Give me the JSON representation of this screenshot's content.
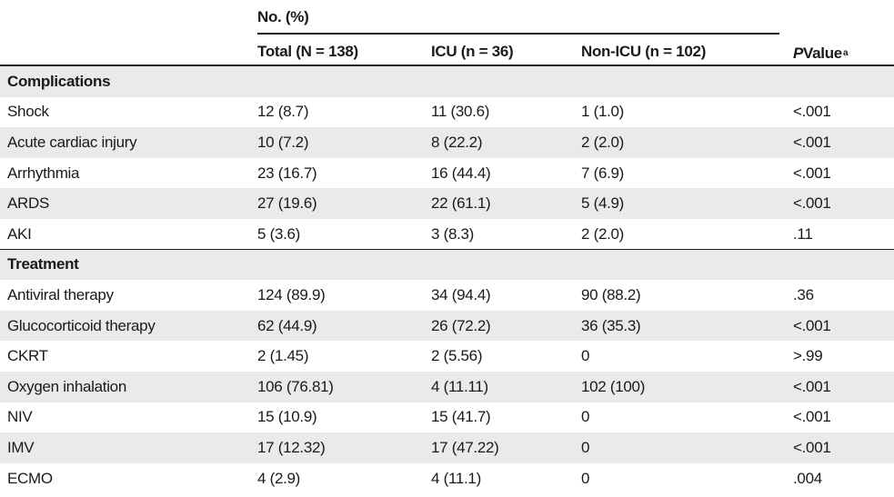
{
  "header": {
    "group_label": "No. (%)",
    "col_total": "Total (N = 138)",
    "col_icu": "ICU (n = 36)",
    "col_nonicu": "Non-ICU (n = 102)",
    "col_p_italic": "P",
    "col_p_rest": " Value",
    "col_p_sup": "a"
  },
  "sections": [
    {
      "title": "Complications",
      "rows": [
        {
          "label": "Shock",
          "total": "12 (8.7)",
          "icu": "11 (30.6)",
          "nonicu": "1 (1.0)",
          "p": "<.001"
        },
        {
          "label": "Acute cardiac injury",
          "total": "10 (7.2)",
          "icu": "8 (22.2)",
          "nonicu": "2 (2.0)",
          "p": "<.001"
        },
        {
          "label": "Arrhythmia",
          "total": "23 (16.7)",
          "icu": "16 (44.4)",
          "nonicu": "7 (6.9)",
          "p": "<.001"
        },
        {
          "label": "ARDS",
          "total": "27 (19.6)",
          "icu": "22 (61.1)",
          "nonicu": "5 (4.9)",
          "p": "<.001"
        },
        {
          "label": "AKI",
          "total": "5 (3.6)",
          "icu": "3 (8.3)",
          "nonicu": "2 (2.0)",
          "p": ".11"
        }
      ]
    },
    {
      "title": "Treatment",
      "rows": [
        {
          "label": "Antiviral therapy",
          "total": "124 (89.9)",
          "icu": "34 (94.4)",
          "nonicu": "90 (88.2)",
          "p": ".36"
        },
        {
          "label": "Glucocorticoid therapy",
          "total": "62 (44.9)",
          "icu": "26 (72.2)",
          "nonicu": "36 (35.3)",
          "p": "<.001"
        },
        {
          "label": "CKRT",
          "total": "2 (1.45)",
          "icu": "2 (5.56)",
          "nonicu": "0",
          "p": ">.99"
        },
        {
          "label": "Oxygen inhalation",
          "total": "106 (76.81)",
          "icu": "4 (11.11)",
          "nonicu": "102 (100)",
          "p": "<.001"
        },
        {
          "label": "NIV",
          "total": "15 (10.9)",
          "icu": "15 (41.7)",
          "nonicu": "0",
          "p": "<.001"
        },
        {
          "label": "IMV",
          "total": "17 (12.32)",
          "icu": "17 (47.22)",
          "nonicu": "0",
          "p": "<.001"
        },
        {
          "label": "ECMO",
          "total": "4 (2.9)",
          "icu": "4 (11.1)",
          "nonicu": "0",
          "p": ".004"
        }
      ]
    }
  ]
}
